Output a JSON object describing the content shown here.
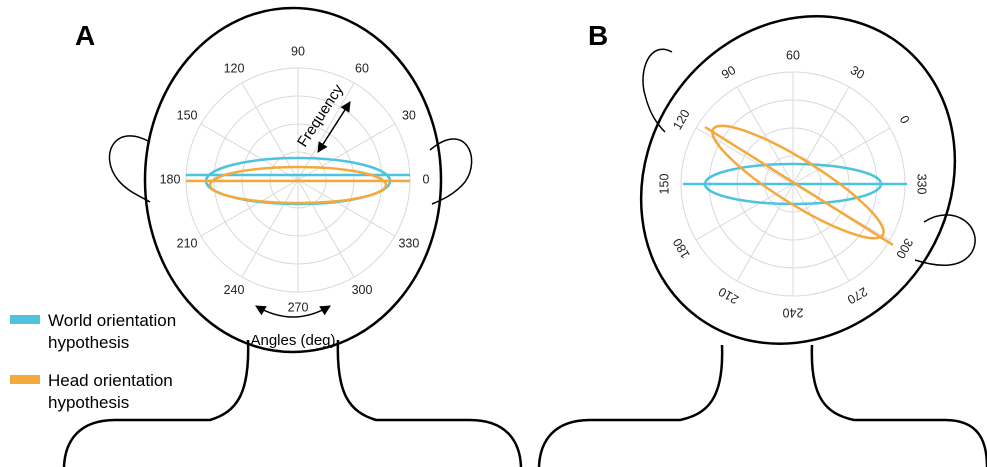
{
  "panels": [
    {
      "letter": "A",
      "angle_labels": [
        "90",
        "60",
        "30",
        "0",
        "330",
        "300",
        "270",
        "240",
        "210",
        "180",
        "150",
        "120"
      ],
      "frequency_label": "Frequency",
      "angles_label": "Angles (deg)"
    },
    {
      "letter": "B",
      "angle_labels": [
        "90",
        "60",
        "30",
        "0",
        "330",
        "300",
        "270",
        "240",
        "210",
        "180",
        "150",
        "120"
      ]
    }
  ],
  "legend": {
    "items": [
      {
        "line1": "World orientation",
        "line2": "hypothesis",
        "color": "#4dc3df"
      },
      {
        "line1": "Head orientation",
        "line2": "hypothesis",
        "color": "#f4a93c"
      }
    ]
  },
  "colors": {
    "world": "#4dc3df",
    "head": "#f4a93c",
    "grid": "#d9d9d9"
  }
}
